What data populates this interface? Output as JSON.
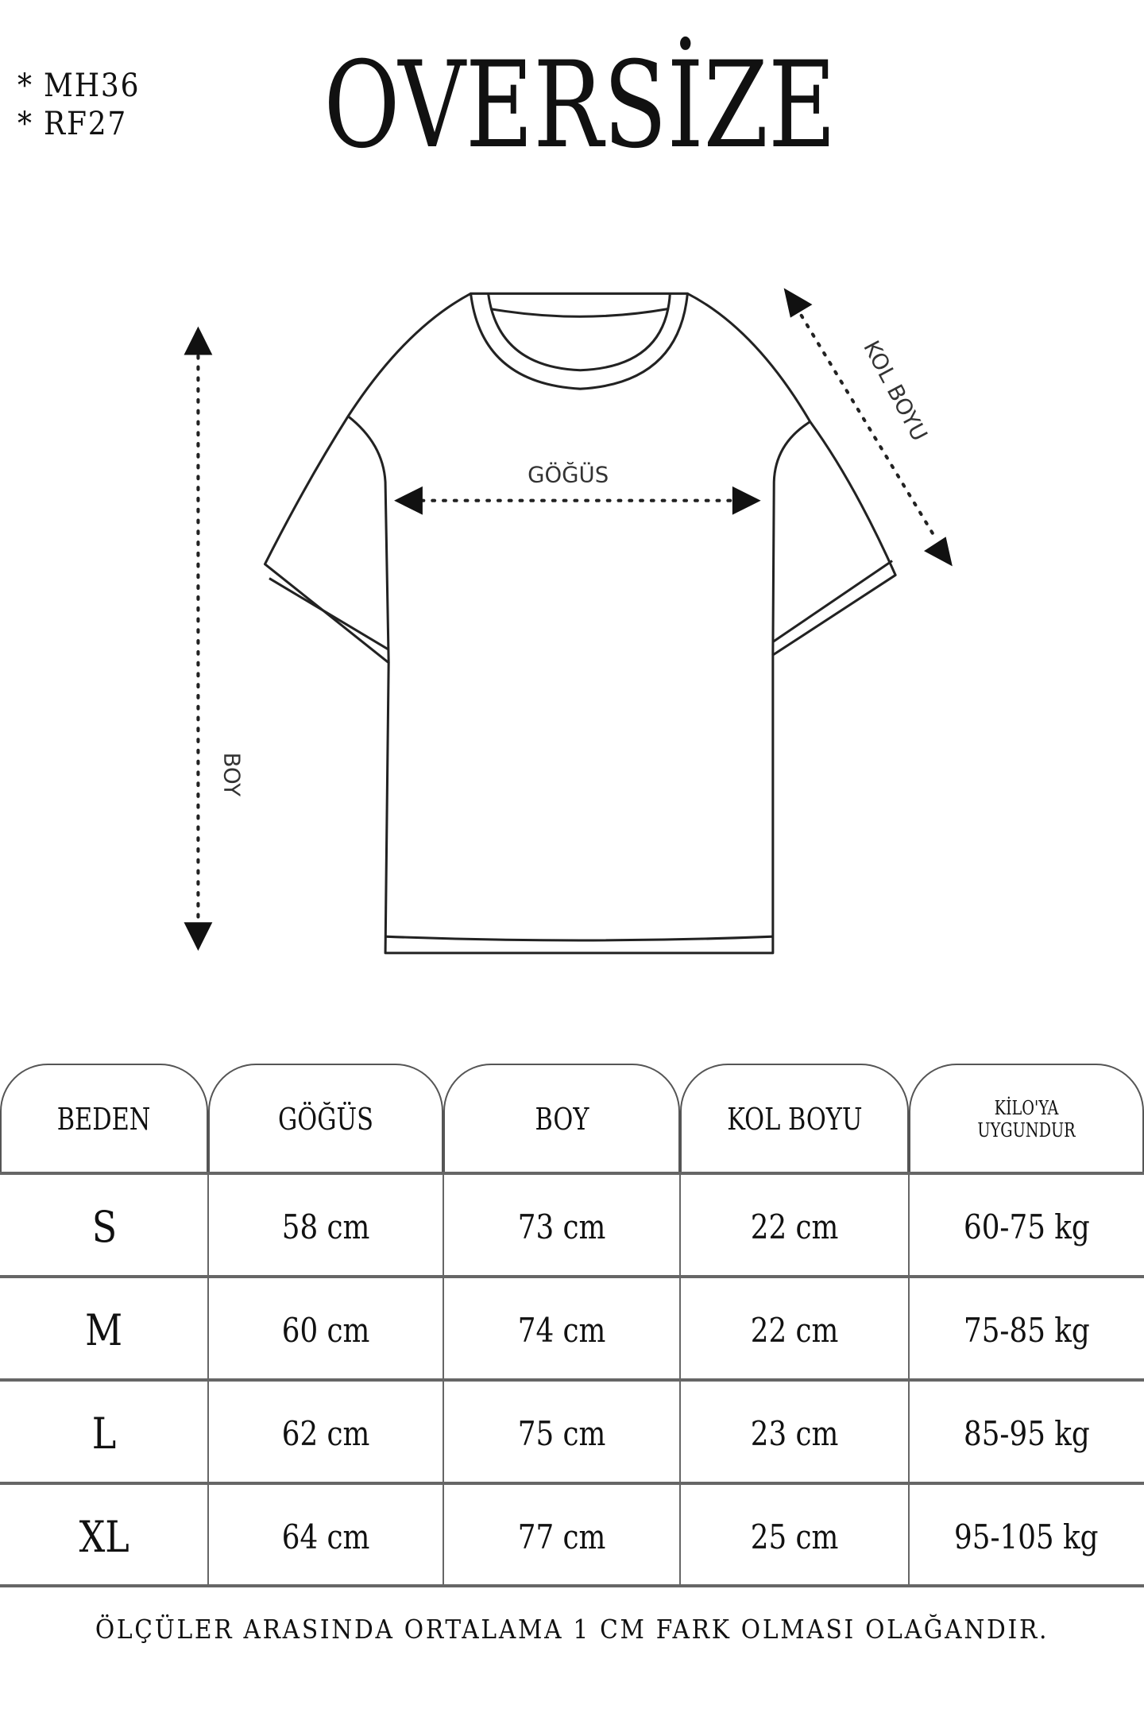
{
  "codes": [
    "* MH36",
    "* RF27"
  ],
  "title": "OVERSİZE",
  "diagram": {
    "chest_label": "GÖĞÜS",
    "length_label": "BOY",
    "sleeve_label": "KOL BOYU"
  },
  "table": {
    "headers": [
      "BEDEN",
      "GÖĞÜS",
      "BOY",
      "KOL BOYU",
      "KİLO'YA UYGUNDUR"
    ],
    "rows": [
      [
        "S",
        "58 cm",
        "73 cm",
        "22  cm",
        "60-75 kg"
      ],
      [
        "M",
        "60 cm",
        "74 cm",
        "22 cm",
        "75-85 kg"
      ],
      [
        "L",
        "62 cm",
        "75 cm",
        "23 cm",
        "85-95 kg"
      ],
      [
        "XL",
        "64 cm",
        "77 cm",
        "25 cm",
        "95-105 kg"
      ]
    ]
  },
  "footer": "ÖLÇÜLER ARASINDA ORTALAMA 1 CM FARK OLMASI OLAĞANDIR."
}
